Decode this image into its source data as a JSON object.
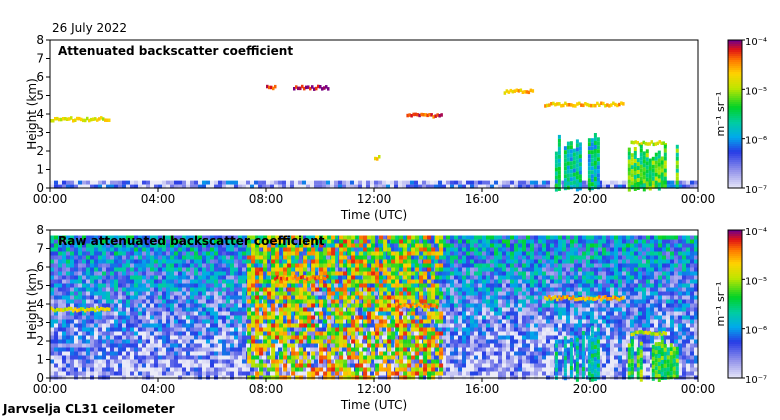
{
  "header": {
    "date": "26 July 2022"
  },
  "footer": {
    "site": "Jarvselja CL31 ceilometer"
  },
  "colorbar": {
    "unit_text": "m⁻¹ sr⁻¹",
    "tick_labels": [
      "10⁻⁴",
      "10⁻⁵",
      "10⁻⁶",
      "10⁻⁷"
    ]
  },
  "colors": {
    "axis": "#000000",
    "background": "#ffffff"
  },
  "chart_data": [
    {
      "type": "heatmap",
      "title": "Attenuated backscatter coefficient",
      "xlabel": "Time (UTC)",
      "ylabel": "Height (km)",
      "x_ticks": [
        "00:00",
        "04:00",
        "08:00",
        "12:00",
        "16:00",
        "20:00",
        "00:00"
      ],
      "y_ticks": [
        0,
        1,
        2,
        3,
        4,
        5,
        6,
        7,
        8
      ],
      "xlim": [
        0,
        24
      ],
      "ylim": [
        0,
        8
      ],
      "colorbar_range": [
        -7,
        -4
      ],
      "features": [
        {
          "kind": "surface layer",
          "t_start": 0,
          "t_end": 24,
          "h_top_km": 0.4,
          "log10_value": -6.6
        },
        {
          "kind": "cloud base",
          "t_start": 0.0,
          "t_end": 2.2,
          "height_km": 3.7,
          "log10_value": -4.8
        },
        {
          "kind": "cloud base",
          "t_start": 8.0,
          "t_end": 8.3,
          "height_km": 5.4,
          "log10_value": -4.3
        },
        {
          "kind": "cloud base",
          "t_start": 9.0,
          "t_end": 10.3,
          "height_km": 5.4,
          "log10_value": -4.1
        },
        {
          "kind": "cloud base",
          "t_start": 12.0,
          "t_end": 12.2,
          "height_km": 1.6,
          "log10_value": -4.8
        },
        {
          "kind": "cloud base",
          "t_start": 13.2,
          "t_end": 14.5,
          "height_km": 3.9,
          "log10_value": -4.3
        },
        {
          "kind": "cloud base",
          "t_start": 16.8,
          "t_end": 17.9,
          "height_km": 5.2,
          "log10_value": -4.6
        },
        {
          "kind": "cloud base",
          "t_start": 18.3,
          "t_end": 21.2,
          "height_km": 4.5,
          "log10_value": -4.6
        },
        {
          "kind": "cloud base",
          "t_start": 21.5,
          "t_end": 22.8,
          "height_km": 2.4,
          "log10_value": -4.9
        },
        {
          "kind": "precipitation streaks",
          "t_start": 18.7,
          "t_end": 20.3,
          "height_km": 3.0,
          "log10_value": -5.7
        },
        {
          "kind": "precipitation streaks",
          "t_start": 21.4,
          "t_end": 23.2,
          "height_km": 2.4,
          "log10_value": -5.3
        }
      ]
    },
    {
      "type": "heatmap",
      "title": "Raw attenuated backscatter coefficient",
      "xlabel": "Time (UTC)",
      "ylabel": "Height (km)",
      "x_ticks": [
        "00:00",
        "04:00",
        "08:00",
        "12:00",
        "16:00",
        "20:00",
        "00:00"
      ],
      "y_ticks": [
        0,
        1,
        2,
        3,
        4,
        5,
        6,
        7,
        8
      ],
      "xlim": [
        0,
        24
      ],
      "ylim": [
        0,
        8
      ],
      "colorbar_range": [
        -7,
        -4
      ],
      "features": [
        {
          "kind": "noise field",
          "t_start": 0,
          "t_end": 24,
          "h_top_km": 7.7,
          "log10_value": -5.9
        },
        {
          "kind": "high noise",
          "t_start": 7.3,
          "t_end": 14.5,
          "h_top_km": 7.7,
          "log10_value": -4.8
        },
        {
          "kind": "cloud base",
          "t_start": 0.0,
          "t_end": 2.2,
          "height_km": 3.7,
          "log10_value": -4.8
        },
        {
          "kind": "cloud base",
          "t_start": 8.3,
          "t_end": 10.3,
          "height_km": 5.4,
          "log10_value": -4.4
        },
        {
          "kind": "cloud base",
          "t_start": 12.8,
          "t_end": 14.3,
          "height_km": 3.9,
          "log10_value": -4.5
        },
        {
          "kind": "cloud base",
          "t_start": 18.3,
          "t_end": 21.2,
          "height_km": 4.3,
          "log10_value": -4.6
        },
        {
          "kind": "cloud base",
          "t_start": 21.5,
          "t_end": 22.8,
          "height_km": 2.4,
          "log10_value": -4.9
        },
        {
          "kind": "precipitation streaks",
          "t_start": 18.7,
          "t_end": 20.3,
          "height_km": 3.0,
          "log10_value": -5.7
        },
        {
          "kind": "precipitation streaks",
          "t_start": 21.4,
          "t_end": 23.2,
          "height_km": 2.4,
          "log10_value": -5.3
        }
      ]
    }
  ]
}
